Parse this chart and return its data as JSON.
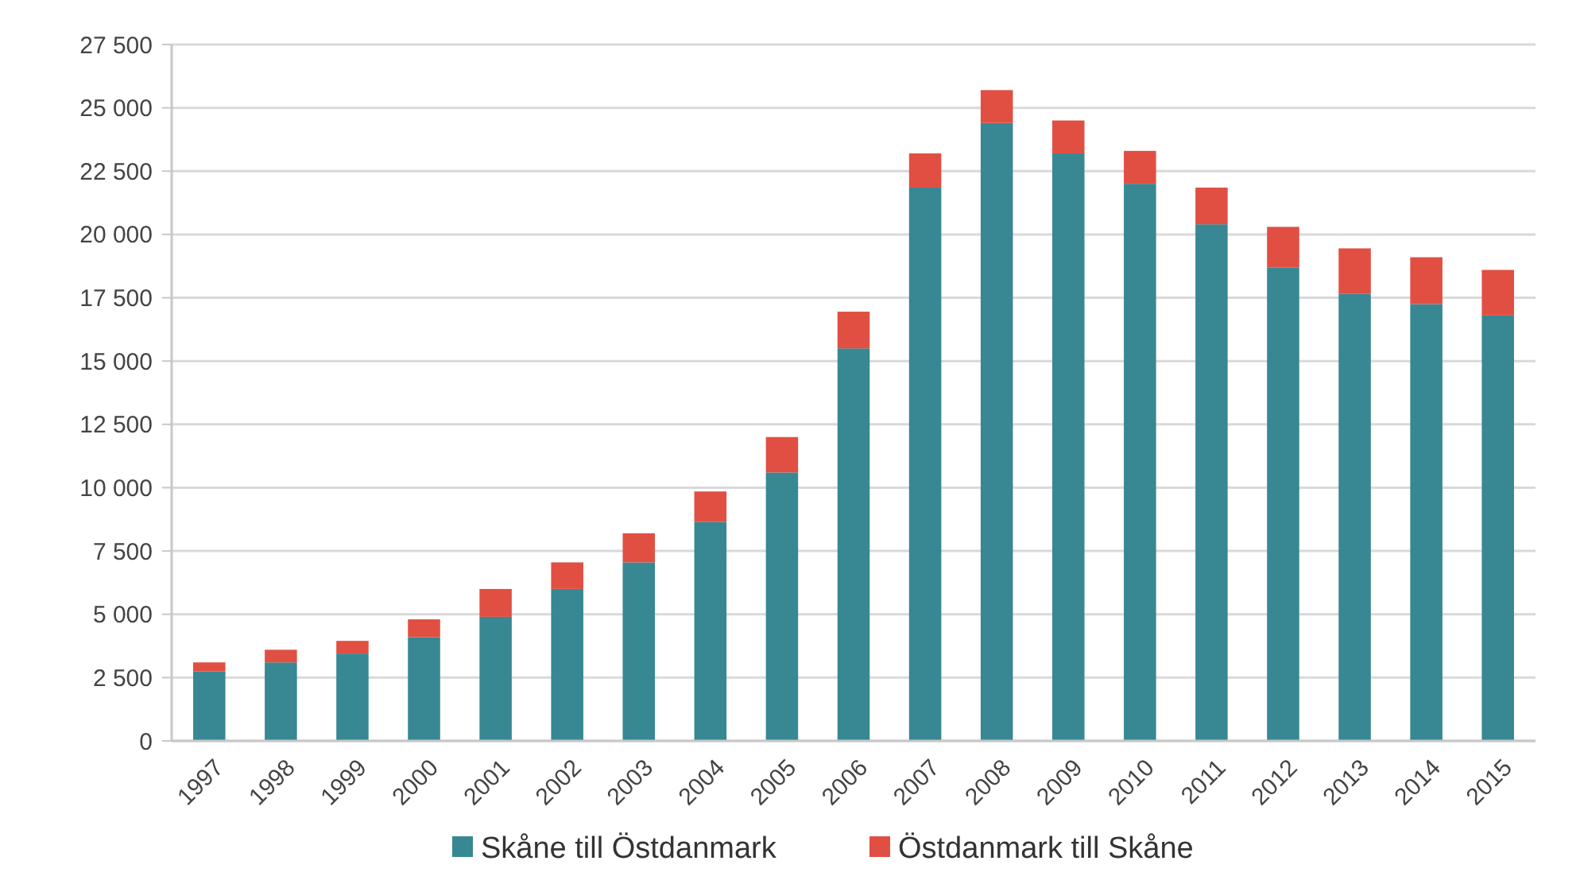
{
  "chart_data": {
    "type": "bar",
    "stacked": true,
    "categories": [
      "1997",
      "1998",
      "1999",
      "2000",
      "2001",
      "2002",
      "2003",
      "2004",
      "2005",
      "2006",
      "2007",
      "2008",
      "2009",
      "2010",
      "2011",
      "2012",
      "2013",
      "2014",
      "2015"
    ],
    "series": [
      {
        "name": "Skåne till Östdanmark",
        "color": "#378893",
        "values": [
          2750,
          3100,
          3450,
          4100,
          4900,
          6000,
          7050,
          8650,
          10600,
          15500,
          21850,
          24400,
          23200,
          22000,
          20400,
          18700,
          17650,
          17250,
          16800
        ]
      },
      {
        "name": "Östdanmark till Skåne",
        "color": "#e14f43",
        "values": [
          350,
          500,
          500,
          700,
          1100,
          1050,
          1150,
          1200,
          1400,
          1450,
          1350,
          1300,
          1300,
          1300,
          1450,
          1600,
          1800,
          1850,
          1800
        ]
      }
    ],
    "ylim": [
      0,
      27500
    ],
    "yticks": [
      {
        "value": 0,
        "label": "0"
      },
      {
        "value": 2500,
        "label": "2 500"
      },
      {
        "value": 5000,
        "label": "5 000"
      },
      {
        "value": 7500,
        "label": "7 500"
      },
      {
        "value": 10000,
        "label": "10 000"
      },
      {
        "value": 12500,
        "label": "12 500"
      },
      {
        "value": 15000,
        "label": "15 000"
      },
      {
        "value": 17500,
        "label": "17 500"
      },
      {
        "value": 20000,
        "label": "20 000"
      },
      {
        "value": 22500,
        "label": "22 500"
      },
      {
        "value": 25000,
        "label": "25 000"
      },
      {
        "value": 27500,
        "label": "27 500"
      }
    ],
    "grid": "y",
    "legend": "bottom"
  }
}
